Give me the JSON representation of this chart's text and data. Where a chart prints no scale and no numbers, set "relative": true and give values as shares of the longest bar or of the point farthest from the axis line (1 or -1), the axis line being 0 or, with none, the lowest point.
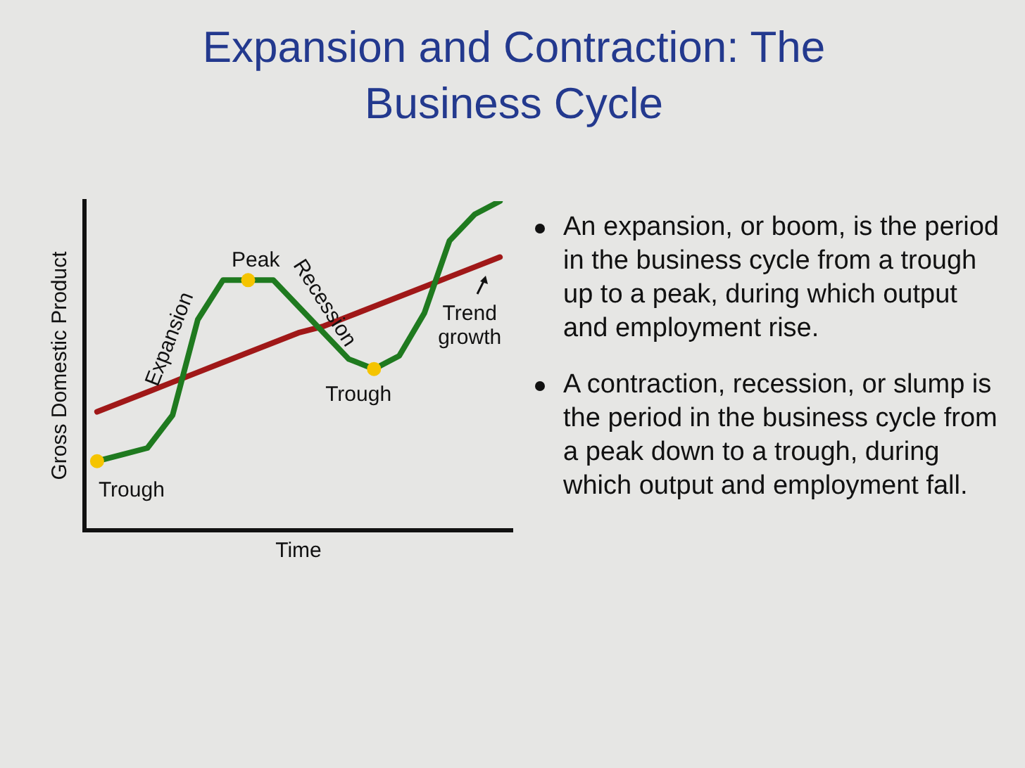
{
  "chart_data": {
    "type": "line",
    "title": "Expansion and Contraction: The Business Cycle",
    "xlabel": "Time",
    "ylabel": "Gross Domestic Product",
    "relative": true,
    "categories": [
      null,
      null,
      null,
      null,
      null,
      null,
      null,
      null,
      null,
      null,
      null,
      null,
      null,
      null,
      null,
      null,
      null
    ],
    "series": [
      {
        "color": "#1f7a1f",
        "values": [
          0.21,
          0.23,
          0.25,
          0.35,
          0.64,
          0.76,
          0.76,
          0.76,
          0.68,
          0.6,
          0.52,
          0.49,
          0.53,
          0.66,
          0.88,
          0.96,
          1.0
        ]
      },
      {
        "color": "#a01818",
        "values": [
          0.36,
          0.39,
          0.42,
          0.45,
          0.48,
          0.51,
          0.54,
          0.57,
          0.6,
          0.62,
          0.65,
          0.68,
          0.71,
          0.74,
          0.77,
          0.8,
          0.83
        ]
      }
    ],
    "marker": "none",
    "grid": false,
    "legend": false,
    "annotations": [
      "Peak",
      "Trough",
      "Trough",
      "Expansion",
      "Recession",
      "Trend growth",
      "An expansion, or boom, is the period in the business cycle from a trough up to a peak, during which output and employment rise.",
      "A contraction, recession, or slump is the period in the business cycle from a peak down to a trough, during which output and employment fall."
    ]
  }
}
